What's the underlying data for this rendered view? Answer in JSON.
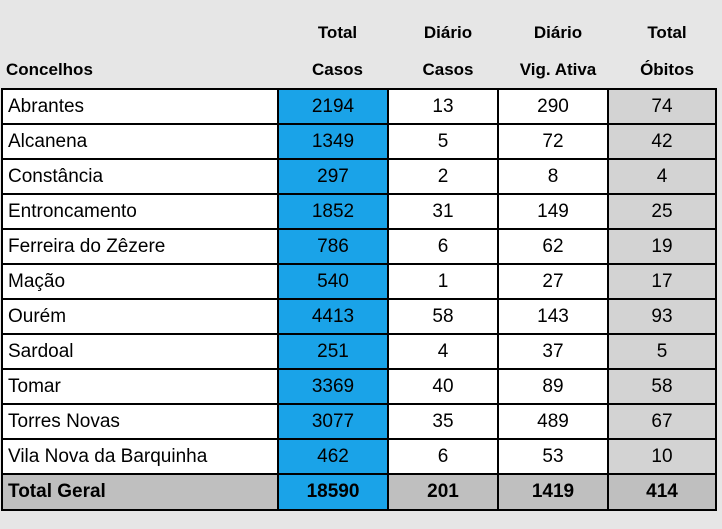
{
  "headers": {
    "concelhos": "Concelhos",
    "total_casos": [
      "Total",
      "Casos"
    ],
    "diario_casos": [
      "Diário",
      "Casos"
    ],
    "diario_vig": [
      "Diário",
      "Vig. Ativa"
    ],
    "total_obitos": [
      "Total",
      "Óbitos"
    ]
  },
  "rows": [
    {
      "name": "Abrantes",
      "total_casos": "2194",
      "diario_casos": "13",
      "vig_ativa": "290",
      "obitos": "74"
    },
    {
      "name": "Alcanena",
      "total_casos": "1349",
      "diario_casos": "5",
      "vig_ativa": "72",
      "obitos": "42"
    },
    {
      "name": "Constância",
      "total_casos": "297",
      "diario_casos": "2",
      "vig_ativa": "8",
      "obitos": "4"
    },
    {
      "name": "Entroncamento",
      "total_casos": "1852",
      "diario_casos": "31",
      "vig_ativa": "149",
      "obitos": "25"
    },
    {
      "name": "Ferreira do Zêzere",
      "total_casos": "786",
      "diario_casos": "6",
      "vig_ativa": "62",
      "obitos": "19"
    },
    {
      "name": "Mação",
      "total_casos": "540",
      "diario_casos": "1",
      "vig_ativa": "27",
      "obitos": "17"
    },
    {
      "name": "Ourém",
      "total_casos": "4413",
      "diario_casos": "58",
      "vig_ativa": "143",
      "obitos": "93"
    },
    {
      "name": "Sardoal",
      "total_casos": "251",
      "diario_casos": "4",
      "vig_ativa": "37",
      "obitos": "5"
    },
    {
      "name": "Tomar",
      "total_casos": "3369",
      "diario_casos": "40",
      "vig_ativa": "89",
      "obitos": "58"
    },
    {
      "name": "Torres Novas",
      "total_casos": "3077",
      "diario_casos": "35",
      "vig_ativa": "489",
      "obitos": "67"
    },
    {
      "name": "Vila Nova da Barquinha",
      "total_casos": "462",
      "diario_casos": "6",
      "vig_ativa": "53",
      "obitos": "10"
    }
  ],
  "total": {
    "name": "Total Geral",
    "total_casos": "18590",
    "diario_casos": "201",
    "vig_ativa": "1419",
    "obitos": "414"
  },
  "colors": {
    "blue": "#1aa3e8",
    "gray": "#d3d3d3",
    "total_gray": "#bfbfbf",
    "background": "#e6e6e6"
  }
}
